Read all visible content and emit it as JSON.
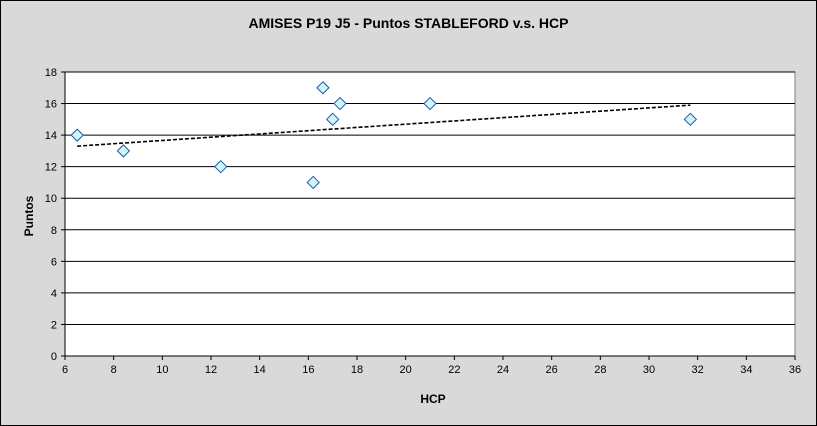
{
  "chart_data": {
    "type": "scatter",
    "title": "AMISES P19 J5 - Puntos STABLEFORD v.s. HCP",
    "xlabel": "HCP",
    "ylabel": "Puntos",
    "xlim": [
      6,
      36
    ],
    "ylim": [
      0,
      18
    ],
    "x_ticks": [
      6,
      8,
      10,
      12,
      14,
      16,
      18,
      20,
      22,
      24,
      26,
      28,
      30,
      32,
      34,
      36
    ],
    "y_ticks": [
      0,
      2,
      4,
      6,
      8,
      10,
      12,
      14,
      16,
      18
    ],
    "grid": "horizontal",
    "legend": "none",
    "series": [
      {
        "marker": "diamond",
        "points": [
          {
            "x": 6.5,
            "y": 14
          },
          {
            "x": 8.4,
            "y": 13
          },
          {
            "x": 12.4,
            "y": 12
          },
          {
            "x": 16.2,
            "y": 11
          },
          {
            "x": 16.6,
            "y": 17
          },
          {
            "x": 17.0,
            "y": 15
          },
          {
            "x": 17.3,
            "y": 16
          },
          {
            "x": 21.0,
            "y": 16
          },
          {
            "x": 31.7,
            "y": 15
          }
        ]
      }
    ],
    "trendline": {
      "type": "linear",
      "style": "dashed",
      "x_range": [
        6.5,
        31.7
      ],
      "y_range": [
        13.3,
        15.9
      ]
    },
    "colors": {
      "frame_bg": "#d9d9d9",
      "plot_bg": "#ffffff",
      "grid": "#000000",
      "marker_fill": "#ccf5fc",
      "marker_stroke": "#1f5aa0",
      "trendline": "#000000"
    }
  }
}
